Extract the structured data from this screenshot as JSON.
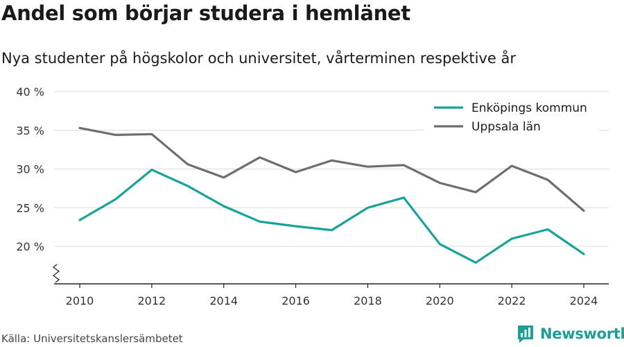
{
  "title": "Andel som börjar studera i hemlänet",
  "subtitle": "Nya studenter på högskolor och universitet, vårterminen respektive år",
  "source": "Källa: Universitetskanslersämbetet",
  "brand": {
    "name": "Newsworthy",
    "icon": "newsworthy-logo-icon",
    "color": "#1e9e94"
  },
  "chart_data": {
    "type": "line",
    "x": [
      2010,
      2011,
      2012,
      2013,
      2014,
      2015,
      2016,
      2017,
      2018,
      2019,
      2020,
      2021,
      2022,
      2023,
      2024
    ],
    "x_ticks": [
      2010,
      2012,
      2014,
      2016,
      2018,
      2020,
      2022,
      2024
    ],
    "y_ticks": [
      20,
      25,
      30,
      35,
      40
    ],
    "y_tick_labels": [
      "20 %",
      "25 %",
      "30 %",
      "35 %",
      "40 %"
    ],
    "ylim": [
      15,
      40
    ],
    "y_axis_break": true,
    "grid": true,
    "legend_position": "top-right",
    "series": [
      {
        "name": "Enköpings kommun",
        "color": "#17a398",
        "values": [
          23.4,
          26.1,
          29.9,
          27.8,
          25.2,
          23.2,
          22.6,
          22.1,
          25.0,
          26.3,
          20.3,
          17.9,
          21.0,
          22.2,
          19.0
        ]
      },
      {
        "name": "Uppsala län",
        "color": "#6e6e72",
        "values": [
          35.3,
          34.4,
          34.5,
          30.6,
          28.9,
          31.5,
          29.6,
          31.1,
          30.3,
          30.5,
          28.2,
          27.0,
          30.4,
          28.6,
          24.6
        ]
      }
    ]
  }
}
